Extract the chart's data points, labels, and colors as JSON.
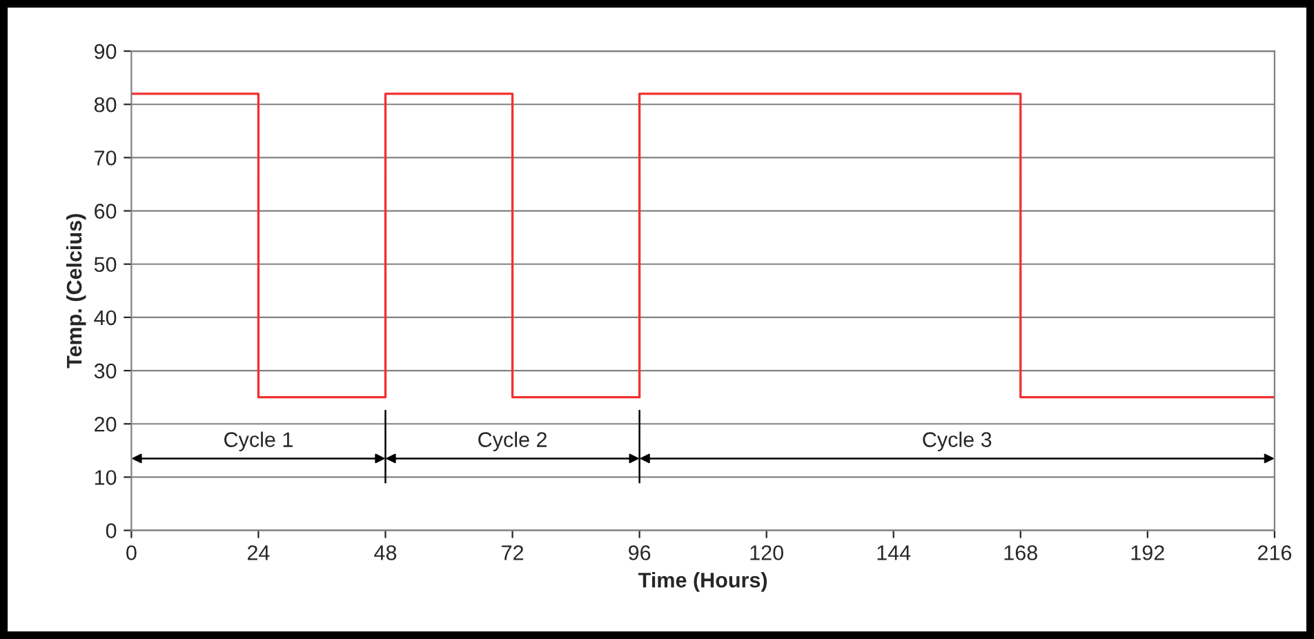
{
  "chart_data": {
    "type": "step",
    "xlabel": "Time (Hours)",
    "ylabel": "Temp. (Celcius)",
    "x": [
      0,
      24,
      48,
      72,
      96,
      168,
      216
    ],
    "series": [
      {
        "color": "#f03030",
        "values": [
          82,
          25,
          82,
          25,
          82,
          25,
          25
        ]
      }
    ],
    "xlim": [
      0,
      216
    ],
    "xticks": [
      0,
      24,
      48,
      72,
      96,
      120,
      144,
      168,
      192,
      216
    ],
    "ylim": [
      0,
      90
    ],
    "yticks": [
      0,
      10,
      20,
      30,
      40,
      50,
      60,
      70,
      80,
      90
    ],
    "grid": "y",
    "legend": false,
    "ref_lines": [
      {
        "axis": "x",
        "value": 48,
        "label": null,
        "color": "#000000"
      },
      {
        "axis": "x",
        "value": 96,
        "label": null,
        "color": "#000000"
      }
    ],
    "annotations": [
      "Cycle 1",
      "Cycle 2",
      "Cycle 3"
    ]
  }
}
